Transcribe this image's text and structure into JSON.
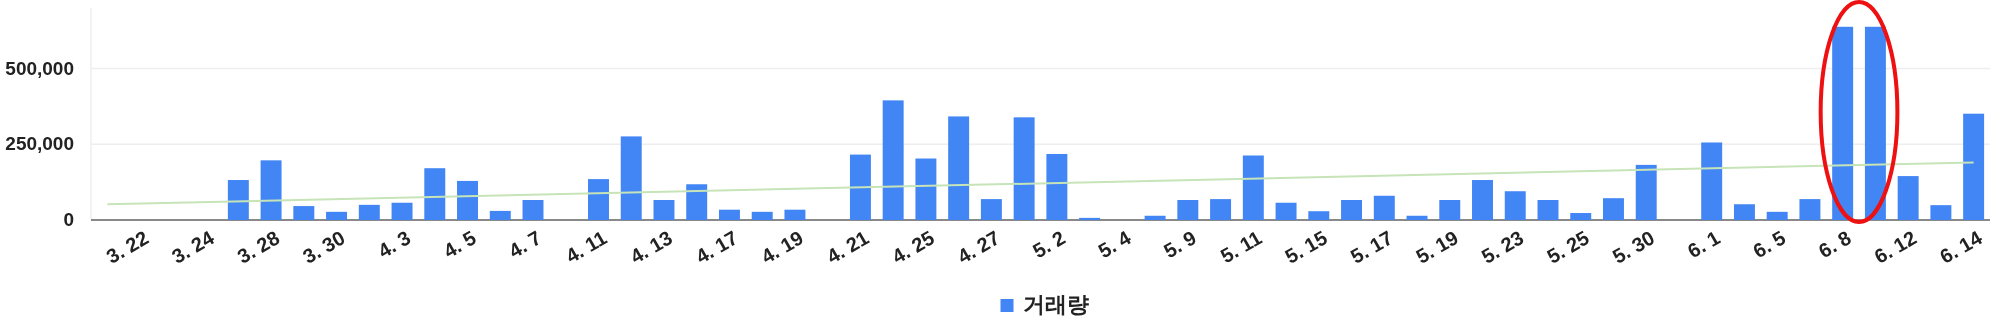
{
  "chart_data": {
    "type": "bar",
    "categories": [
      null,
      "3. 22",
      null,
      "3. 24",
      null,
      "3. 28",
      null,
      "3. 30",
      null,
      "4. 3",
      null,
      "4. 5",
      null,
      "4. 7",
      null,
      "4. 11",
      null,
      "4. 13",
      null,
      "4. 17",
      null,
      "4. 19",
      null,
      "4. 21",
      null,
      "4. 25",
      null,
      "4. 27",
      null,
      "5. 2",
      null,
      "5. 4",
      null,
      "5. 9",
      null,
      "5. 11",
      null,
      "5. 15",
      null,
      "5. 17",
      null,
      "5. 19",
      null,
      "5. 23",
      null,
      "5. 25",
      null,
      "5. 30",
      null,
      "6. 1",
      null,
      "6. 5",
      null,
      "6. 8",
      null,
      "6. 12",
      null,
      "6. 14"
    ],
    "series": [
      {
        "name": "거래량",
        "color": "#4285f4",
        "values": [
          0,
          0,
          0,
          0,
          132000,
          197000,
          46000,
          27000,
          50000,
          57000,
          171000,
          129000,
          30000,
          66000,
          0,
          135000,
          276000,
          66000,
          118000,
          34000,
          27000,
          34000,
          0,
          216000,
          395000,
          203000,
          342000,
          69000,
          339000,
          218000,
          7000,
          0,
          14000,
          66000,
          69000,
          213000,
          57000,
          29000,
          66000,
          80000,
          14000,
          66000,
          132000,
          95000,
          66000,
          23000,
          72000,
          182000,
          0,
          256000,
          52000,
          27000,
          69000,
          638000,
          638000,
          145000,
          49000,
          351000
        ]
      },
      {
        "type": "line",
        "color": "#c6e4b8",
        "values": [
          52000,
          null,
          null,
          null,
          null,
          null,
          null,
          null,
          null,
          null,
          null,
          null,
          null,
          null,
          null,
          null,
          null,
          null,
          null,
          null,
          null,
          null,
          null,
          null,
          null,
          null,
          null,
          null,
          null,
          null,
          null,
          null,
          null,
          null,
          null,
          null,
          null,
          null,
          null,
          null,
          null,
          null,
          null,
          null,
          null,
          null,
          null,
          null,
          null,
          null,
          null,
          null,
          null,
          null,
          null,
          null,
          null,
          190000
        ]
      }
    ],
    "ylim": [
      0,
      700000
    ],
    "yticks": [
      0,
      {
        "value": 250000,
        "label": "250,000"
      },
      {
        "value": 500000,
        "label": "500,000"
      }
    ],
    "grid": "y",
    "legend": "bottom"
  }
}
